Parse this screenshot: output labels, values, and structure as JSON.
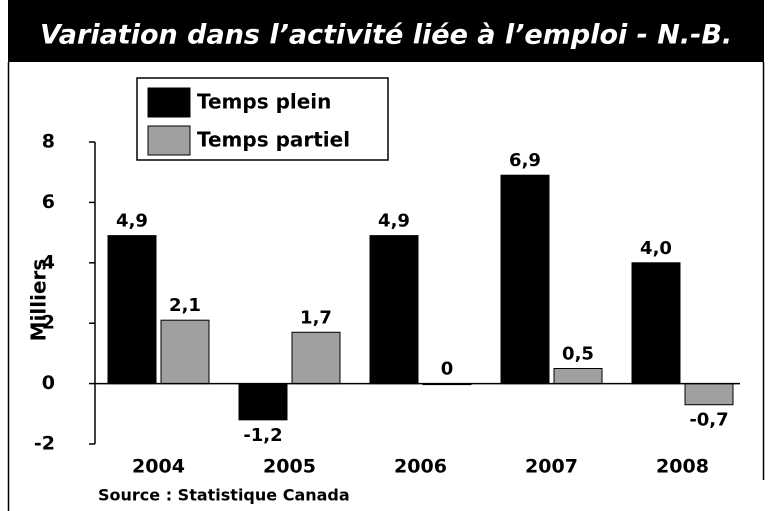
{
  "chart_data": {
    "type": "bar",
    "title": "Variation dans l’activité liée à l’emploi - N.-B.",
    "y_label": "Milliers",
    "source": "Source : Statistique Canada",
    "categories": [
      "2004",
      "2005",
      "2006",
      "2007",
      "2008"
    ],
    "series": [
      {
        "name": "Temps plein",
        "color": "#000000",
        "values": [
          4.9,
          -1.2,
          4.9,
          6.9,
          4.0
        ],
        "value_labels": [
          "4,9",
          "-1,2",
          "4,9",
          "6,9",
          "4,0"
        ]
      },
      {
        "name": "Temps partiel",
        "color": "#a0a0a0",
        "values": [
          2.1,
          1.7,
          0,
          0.5,
          -0.7
        ],
        "value_labels": [
          "2,1",
          "1,7",
          "0",
          "0,5",
          "-0,7"
        ]
      }
    ],
    "ylim": [
      -2,
      8
    ],
    "yticks": [
      8,
      6,
      4,
      2,
      0,
      -2
    ]
  }
}
